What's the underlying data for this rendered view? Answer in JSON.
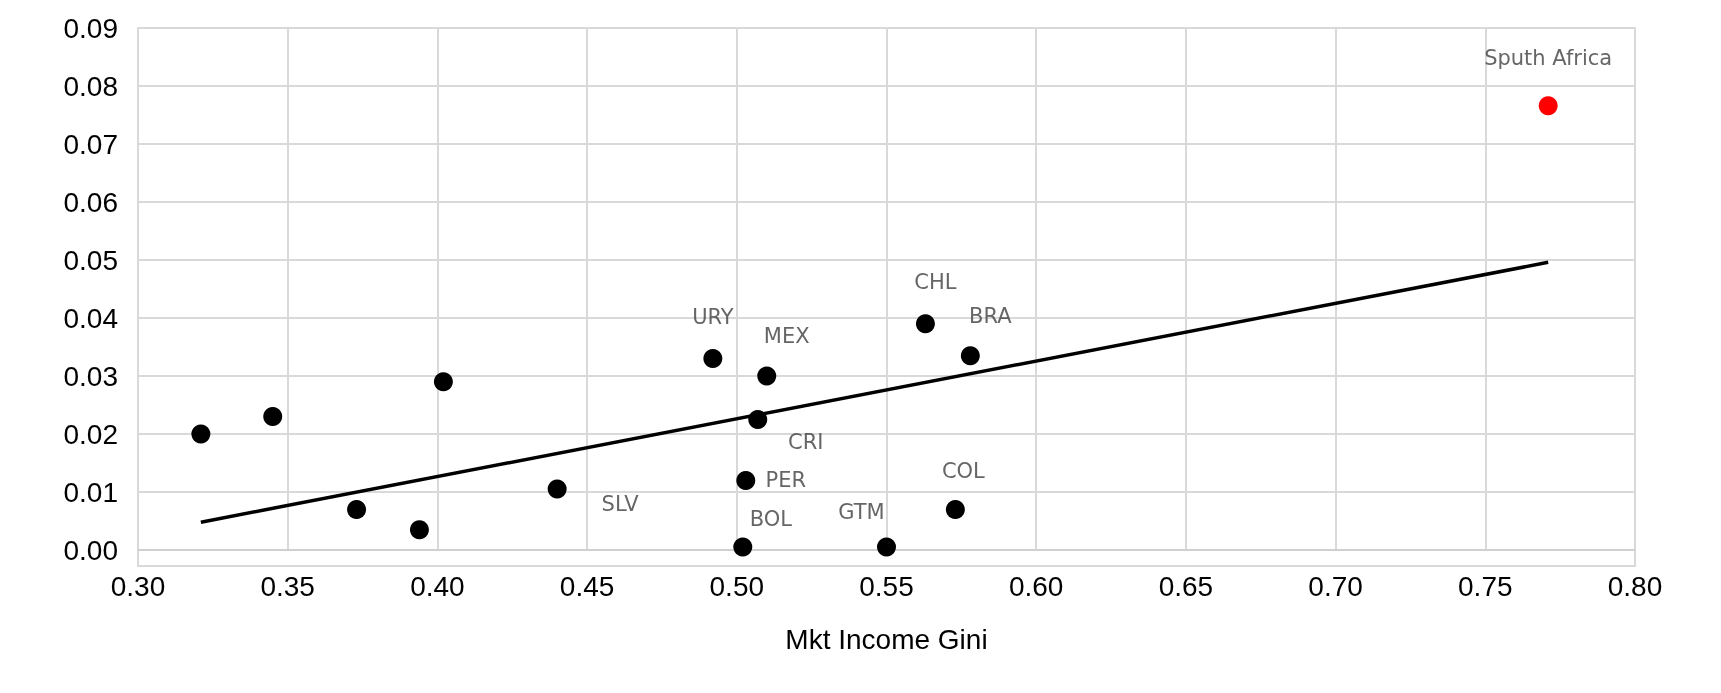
{
  "chart_data": {
    "type": "scatter",
    "xlabel": "Mkt Income Gini",
    "series": [
      {
        "color": "#000000",
        "x": [
          0.321,
          0.345,
          0.373,
          0.394,
          0.402,
          0.44,
          0.492,
          0.51,
          0.507,
          0.503,
          0.502,
          0.55,
          0.563,
          0.578,
          0.573
        ],
        "values": [
          0.02,
          0.023,
          0.007,
          0.0035,
          0.029,
          0.0105,
          0.033,
          0.03,
          0.0225,
          0.012,
          0.0005,
          0.0005,
          0.039,
          0.0335,
          0.007
        ]
      },
      {
        "color": "#ff0000",
        "x": [
          0.771
        ],
        "values": [
          0.0766
        ]
      },
      {
        "type": "line",
        "color": "#000000",
        "marker": "none",
        "x": [
          0.321,
          0.771
        ],
        "values": [
          0.0048,
          0.0496
        ]
      }
    ],
    "annotations": [
      {
        "text": "Sputh Africa",
        "x": 0.771,
        "y": 0.0766
      },
      {
        "text": "CHL",
        "x": 0.563,
        "y": 0.039
      },
      {
        "text": "BRA",
        "x": 0.578,
        "y": 0.0335
      },
      {
        "text": "URY",
        "x": 0.492,
        "y": 0.033
      },
      {
        "text": "MEX",
        "x": 0.51,
        "y": 0.03
      },
      {
        "text": "CRI",
        "x": 0.507,
        "y": 0.0225
      },
      {
        "text": "PER",
        "x": 0.503,
        "y": 0.012
      },
      {
        "text": "SLV",
        "x": 0.44,
        "y": 0.0105
      },
      {
        "text": "COL",
        "x": 0.573,
        "y": 0.007
      },
      {
        "text": "GTM",
        "x": 0.55,
        "y": 0.0005
      },
      {
        "text": "BOL",
        "x": 0.502,
        "y": 0.0005
      }
    ],
    "xlim": [
      0.3,
      0.8
    ],
    "xticks": [
      {
        "value": 0.3,
        "label": "0.30"
      },
      {
        "value": 0.35,
        "label": "0.35"
      },
      {
        "value": 0.4,
        "label": "0.40"
      },
      {
        "value": 0.45,
        "label": "0.45"
      },
      {
        "value": 0.5,
        "label": "0.50"
      },
      {
        "value": 0.55,
        "label": "0.55"
      },
      {
        "value": 0.6,
        "label": "0.60"
      },
      {
        "value": 0.65,
        "label": "0.65"
      },
      {
        "value": 0.7,
        "label": "0.70"
      },
      {
        "value": 0.75,
        "label": "0.75"
      },
      {
        "value": 0.8,
        "label": "0.80"
      }
    ],
    "ylim": [
      0,
      0.09
    ],
    "yticks": [
      {
        "value": 0,
        "label": "0.00"
      },
      {
        "value": 0.01,
        "label": "0.01"
      },
      {
        "value": 0.02,
        "label": "0.02"
      },
      {
        "value": 0.03,
        "label": "0.03"
      },
      {
        "value": 0.04,
        "label": "0.04"
      },
      {
        "value": 0.05,
        "label": "0.05"
      },
      {
        "value": 0.06,
        "label": "0.06"
      },
      {
        "value": 0.07,
        "label": "0.07"
      },
      {
        "value": 0.08,
        "label": "0.08"
      },
      {
        "value": 0.09,
        "label": "0.09"
      }
    ],
    "grid": true,
    "marker": "circle",
    "line_style": "solid"
  }
}
